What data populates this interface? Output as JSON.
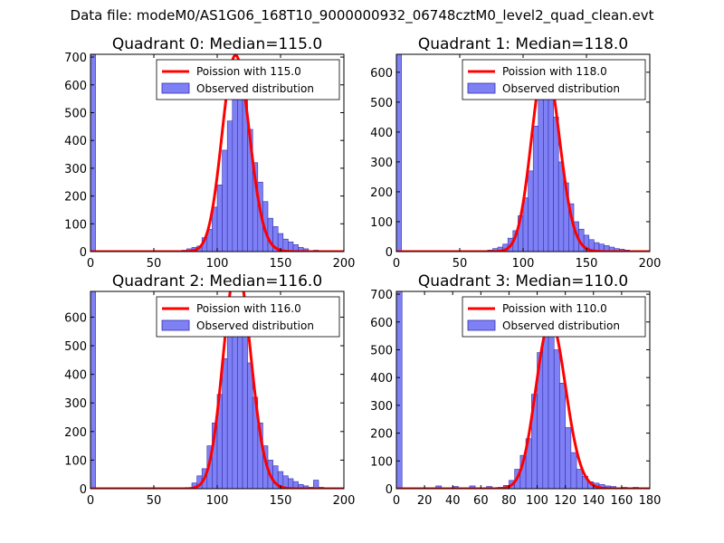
{
  "figure": {
    "suptitle": "Data file: modeM0/AS1G06_168T10_9000000932_06748cztM0_level2_quad_clean.evt"
  },
  "colors": {
    "hist_fill": "#8080f5",
    "hist_edge": "#3030b0",
    "poisson_line": "#ff0000",
    "poisson_peak_highlight": "#f08080"
  },
  "chart_data": [
    {
      "type": "bar",
      "title": "Quadrant 0: Median=115.0",
      "xlim": [
        0,
        200
      ],
      "ylim": [
        0,
        710
      ],
      "xticks": [
        0,
        50,
        100,
        150,
        200
      ],
      "yticks": [
        0,
        100,
        200,
        300,
        400,
        500,
        600,
        700
      ],
      "bin_width": 4,
      "legend": {
        "position": "top-right",
        "line_label": "Poission with 115.0",
        "hist_label": "Observed distribution"
      },
      "poisson_mean": 115.0,
      "bins": [
        [
          0,
          710
        ],
        [
          72,
          5
        ],
        [
          76,
          10
        ],
        [
          80,
          15
        ],
        [
          84,
          20
        ],
        [
          88,
          50
        ],
        [
          92,
          80
        ],
        [
          96,
          160
        ],
        [
          100,
          240
        ],
        [
          104,
          365
        ],
        [
          108,
          470
        ],
        [
          112,
          560
        ],
        [
          116,
          605
        ],
        [
          120,
          570
        ],
        [
          124,
          440
        ],
        [
          128,
          320
        ],
        [
          132,
          250
        ],
        [
          136,
          180
        ],
        [
          140,
          120
        ],
        [
          144,
          90
        ],
        [
          148,
          65
        ],
        [
          152,
          45
        ],
        [
          156,
          35
        ],
        [
          160,
          25
        ],
        [
          164,
          15
        ],
        [
          168,
          10
        ],
        [
          176,
          5
        ]
      ]
    },
    {
      "type": "bar",
      "title": "Quadrant 1: Median=118.0",
      "xlim": [
        0,
        200
      ],
      "ylim": [
        0,
        660
      ],
      "xticks": [
        0,
        50,
        100,
        150,
        200
      ],
      "yticks": [
        0,
        100,
        200,
        300,
        400,
        500,
        600
      ],
      "bin_width": 4,
      "legend": {
        "position": "top-right",
        "line_label": "Poission with 118.0",
        "hist_label": "Observed distribution"
      },
      "poisson_mean": 118.0,
      "bins": [
        [
          0,
          660
        ],
        [
          72,
          5
        ],
        [
          76,
          10
        ],
        [
          80,
          15
        ],
        [
          84,
          25
        ],
        [
          88,
          45
        ],
        [
          92,
          70
        ],
        [
          96,
          120
        ],
        [
          100,
          180
        ],
        [
          104,
          270
        ],
        [
          108,
          420
        ],
        [
          112,
          520
        ],
        [
          116,
          580
        ],
        [
          120,
          545
        ],
        [
          124,
          450
        ],
        [
          128,
          300
        ],
        [
          132,
          230
        ],
        [
          136,
          160
        ],
        [
          140,
          100
        ],
        [
          144,
          75
        ],
        [
          148,
          55
        ],
        [
          152,
          40
        ],
        [
          156,
          30
        ],
        [
          160,
          25
        ],
        [
          164,
          20
        ],
        [
          168,
          15
        ],
        [
          172,
          10
        ],
        [
          176,
          8
        ],
        [
          180,
          5
        ]
      ]
    },
    {
      "type": "bar",
      "title": "Quadrant 2: Median=116.0",
      "xlim": [
        0,
        200
      ],
      "ylim": [
        0,
        690
      ],
      "xticks": [
        0,
        50,
        100,
        150,
        200
      ],
      "yticks": [
        0,
        100,
        200,
        300,
        400,
        500,
        600
      ],
      "bin_width": 4,
      "legend": {
        "position": "top-right",
        "line_label": "Poission with 116.0",
        "hist_label": "Observed distribution"
      },
      "poisson_mean": 116.0,
      "bins": [
        [
          0,
          690
        ],
        [
          80,
          20
        ],
        [
          84,
          45
        ],
        [
          88,
          70
        ],
        [
          92,
          150
        ],
        [
          96,
          230
        ],
        [
          100,
          330
        ],
        [
          104,
          455
        ],
        [
          108,
          560
        ],
        [
          112,
          630
        ],
        [
          116,
          650
        ],
        [
          120,
          560
        ],
        [
          124,
          440
        ],
        [
          128,
          320
        ],
        [
          132,
          230
        ],
        [
          136,
          150
        ],
        [
          140,
          100
        ],
        [
          144,
          80
        ],
        [
          148,
          60
        ],
        [
          152,
          45
        ],
        [
          156,
          35
        ],
        [
          160,
          25
        ],
        [
          164,
          15
        ],
        [
          168,
          10
        ],
        [
          172,
          5
        ],
        [
          176,
          30
        ],
        [
          180,
          5
        ]
      ]
    },
    {
      "type": "bar",
      "title": "Quadrant 3: Median=110.0",
      "xlim": [
        0,
        180
      ],
      "ylim": [
        0,
        710
      ],
      "xticks": [
        0,
        20,
        40,
        60,
        80,
        100,
        120,
        140,
        160,
        180
      ],
      "yticks": [
        0,
        100,
        200,
        300,
        400,
        500,
        600,
        700
      ],
      "bin_width": 4,
      "legend": {
        "position": "top-right",
        "line_label": "Poission with 110.0",
        "hist_label": "Observed distribution"
      },
      "poisson_mean": 110.0,
      "bins": [
        [
          0,
          710
        ],
        [
          28,
          10
        ],
        [
          40,
          8
        ],
        [
          52,
          10
        ],
        [
          64,
          8
        ],
        [
          72,
          5
        ],
        [
          76,
          12
        ],
        [
          80,
          30
        ],
        [
          84,
          70
        ],
        [
          88,
          120
        ],
        [
          92,
          180
        ],
        [
          96,
          340
        ],
        [
          100,
          490
        ],
        [
          104,
          590
        ],
        [
          108,
          665
        ],
        [
          112,
          500
        ],
        [
          116,
          380
        ],
        [
          120,
          220
        ],
        [
          124,
          130
        ],
        [
          128,
          70
        ],
        [
          132,
          45
        ],
        [
          136,
          25
        ],
        [
          140,
          20
        ],
        [
          144,
          15
        ],
        [
          148,
          10
        ],
        [
          152,
          8
        ],
        [
          160,
          5
        ],
        [
          168,
          5
        ]
      ]
    }
  ]
}
